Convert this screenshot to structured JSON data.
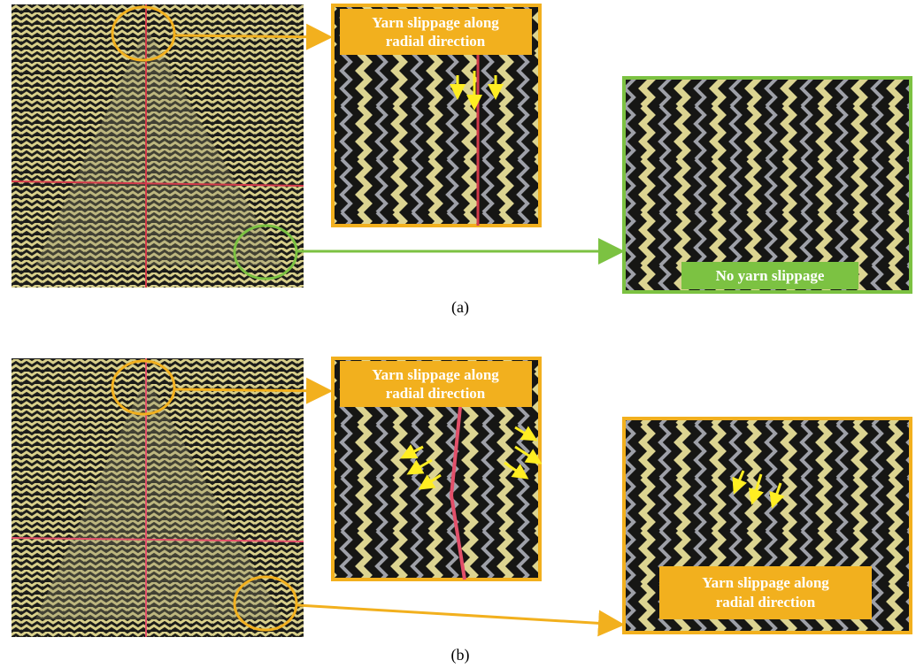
{
  "panels": [
    {
      "label": "(a)",
      "zoom_top": {
        "lines": [
          "Yarn slippage along",
          "radial direction"
        ]
      },
      "zoom_side": {
        "lines": [
          "No yarn slippage"
        ]
      }
    },
    {
      "label": "(b)",
      "zoom_top": {
        "lines": [
          "Yarn slippage along",
          "radial direction"
        ]
      },
      "zoom_side": {
        "lines": [
          "Yarn slippage along",
          "radial direction"
        ]
      }
    }
  ]
}
